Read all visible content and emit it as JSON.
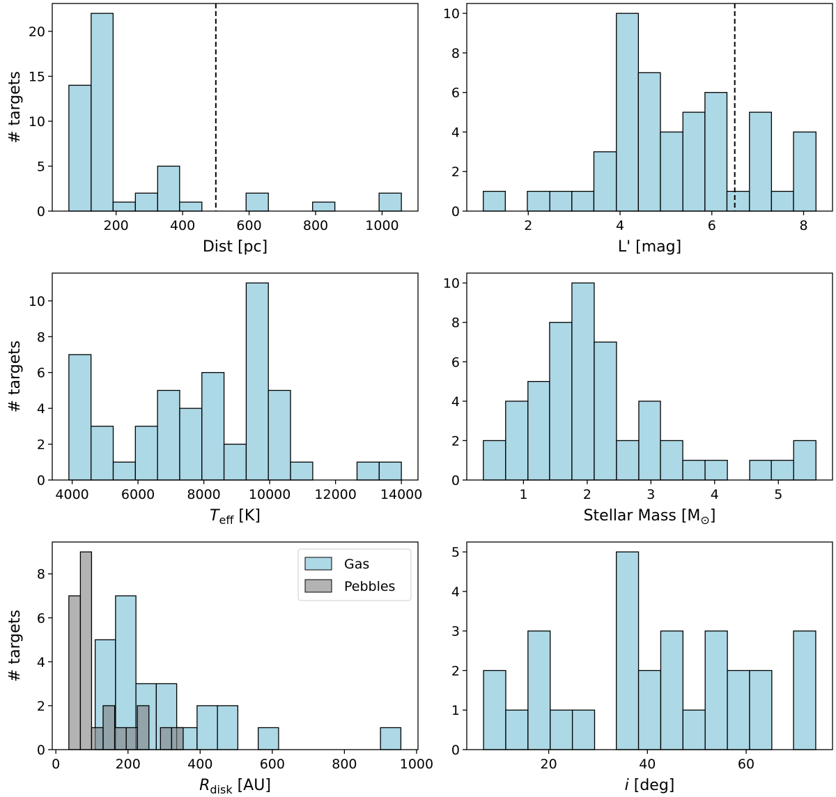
{
  "chart_data": [
    {
      "type": "histogram",
      "xlabel": [
        {
          "text": "Dist [pc]"
        }
      ],
      "ylabel": "# targets",
      "bins": [
        58,
        125,
        191,
        258,
        325,
        391,
        458,
        525,
        591,
        658,
        725,
        791,
        858,
        925,
        991,
        1058
      ],
      "counts": [
        14,
        22,
        1,
        2,
        5,
        1,
        0,
        0,
        2,
        0,
        0,
        1,
        0,
        0,
        2
      ],
      "color": "#add8e6",
      "xlim": [
        8,
        1108
      ],
      "ylim": [
        0,
        23.1
      ],
      "xticks": [
        200,
        400,
        600,
        800,
        1000
      ],
      "yticks": [
        0,
        5,
        10,
        15,
        20
      ],
      "vline": 500
    },
    {
      "type": "histogram",
      "xlabel": [
        {
          "text": "L' [mag]"
        }
      ],
      "bins": [
        1.02,
        1.5,
        1.98,
        2.47,
        2.95,
        3.43,
        3.92,
        4.4,
        4.88,
        5.37,
        5.85,
        6.33,
        6.82,
        7.3,
        7.78,
        8.27
      ],
      "counts": [
        1,
        0,
        1,
        1,
        1,
        3,
        10,
        7,
        4,
        5,
        6,
        1,
        5,
        1,
        4
      ],
      "color": "#add8e6",
      "xlim": [
        0.66,
        8.63
      ],
      "ylim": [
        0,
        10.5
      ],
      "xticks": [
        2,
        4,
        6,
        8
      ],
      "yticks": [
        0,
        2,
        4,
        6,
        8,
        10
      ],
      "vline": 6.5
    },
    {
      "type": "histogram",
      "xlabel": [
        {
          "text": "T",
          "style": "italic"
        },
        {
          "text": "eff",
          "style": "sub"
        },
        {
          "text": " [K]"
        }
      ],
      "ylabel": "# targets",
      "bins": [
        3900,
        4573,
        5247,
        5920,
        6593,
        7267,
        7940,
        8613,
        9287,
        9960,
        10633,
        11307,
        11980,
        12653,
        13327,
        14000
      ],
      "counts": [
        7,
        3,
        1,
        3,
        5,
        4,
        6,
        2,
        11,
        5,
        1,
        0,
        0,
        1,
        1
      ],
      "color": "#add8e6",
      "xlim": [
        3395,
        14505
      ],
      "ylim": [
        0,
        11.55
      ],
      "xticks": [
        4000,
        6000,
        8000,
        10000,
        12000,
        14000
      ],
      "yticks": [
        0,
        2,
        4,
        6,
        8,
        10
      ]
    },
    {
      "type": "histogram",
      "xlabel": [
        {
          "text": "Stellar Mass [M"
        },
        {
          "text": "⊙",
          "style": "sub"
        },
        {
          "text": "]"
        }
      ],
      "bins": [
        0.37,
        0.72,
        1.07,
        1.41,
        1.76,
        2.11,
        2.46,
        2.81,
        3.15,
        3.5,
        3.85,
        4.2,
        4.55,
        4.89,
        5.24,
        5.59
      ],
      "counts": [
        2,
        4,
        5,
        8,
        10,
        7,
        2,
        4,
        2,
        1,
        1,
        0,
        1,
        1,
        2
      ],
      "color": "#add8e6",
      "xlim": [
        0.11,
        5.85
      ],
      "ylim": [
        0,
        10.5
      ],
      "xticks": [
        1,
        2,
        3,
        4,
        5
      ],
      "yticks": [
        0,
        2,
        4,
        6,
        8,
        10
      ]
    },
    {
      "type": "histogram",
      "xlabel": [
        {
          "text": "R",
          "style": "italic"
        },
        {
          "text": "disk",
          "style": "sub"
        },
        {
          "text": " [AU]"
        }
      ],
      "ylabel": "# targets",
      "series": [
        {
          "name": "Gas",
          "color": "#add8e6",
          "bins": [
            109,
            165.5,
            222,
            278.5,
            335,
            391.5,
            448,
            504.5,
            561,
            617.5,
            674,
            730.5,
            787,
            843.5,
            900,
            956.5
          ],
          "counts": [
            5,
            7,
            3,
            3,
            1,
            2,
            2,
            0,
            1,
            0,
            0,
            0,
            0,
            0,
            1
          ]
        },
        {
          "name": "Pebbles",
          "color": "#808080",
          "opacity": 0.6,
          "bins": [
            36,
            68,
            99,
            131,
            163,
            195,
            226,
            258,
            290,
            321,
            353
          ],
          "counts": [
            7,
            9,
            1,
            2,
            1,
            1,
            2,
            0,
            1,
            1
          ]
        }
      ],
      "xlim": [
        -10,
        1004
      ],
      "ylim": [
        0,
        9.45
      ],
      "xticks": [
        0,
        200,
        400,
        600,
        800,
        1000
      ],
      "yticks": [
        0,
        2,
        4,
        6,
        8
      ],
      "legend": "upper right"
    },
    {
      "type": "histogram",
      "xlabel": [
        {
          "text": "i",
          "style": "italic"
        },
        {
          "text": " [deg]"
        }
      ],
      "bins": [
        6.8,
        11.3,
        15.8,
        20.3,
        24.8,
        29.3,
        33.7,
        38.2,
        42.7,
        47.2,
        51.7,
        56.2,
        60.7,
        65.2,
        69.6,
        74.1
      ],
      "counts": [
        2,
        1,
        3,
        1,
        1,
        0,
        5,
        2,
        3,
        1,
        3,
        2,
        2,
        0,
        3
      ],
      "color": "#add8e6",
      "xlim": [
        3.4,
        77.5
      ],
      "ylim": [
        0,
        5.25
      ],
      "xticks": [
        20,
        40,
        60
      ],
      "yticks": [
        0,
        1,
        2,
        3,
        4,
        5
      ]
    }
  ]
}
